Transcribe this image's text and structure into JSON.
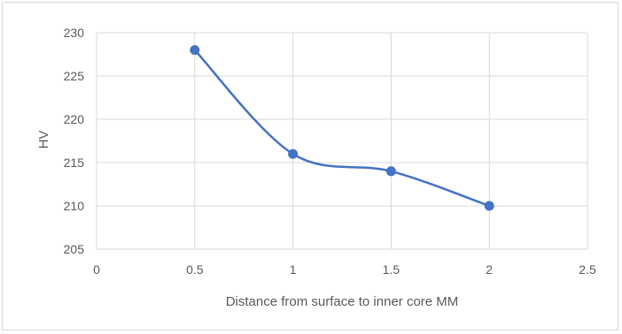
{
  "chart_data": {
    "type": "line",
    "title": "",
    "xlabel": "Distance from surface to inner core MM",
    "ylabel": "HV",
    "xlim": [
      0,
      2.5
    ],
    "ylim": [
      205,
      230
    ],
    "x_ticks": [
      "0",
      "0.5",
      "1",
      "1.5",
      "2",
      "2.5"
    ],
    "y_ticks": [
      "205",
      "210",
      "215",
      "220",
      "225",
      "230"
    ],
    "grid": true,
    "smooth": true,
    "series": [
      {
        "color": "#4472c4",
        "x": [
          0.5,
          1,
          1.5,
          2
        ],
        "y": [
          228,
          216,
          214,
          210
        ]
      }
    ]
  }
}
